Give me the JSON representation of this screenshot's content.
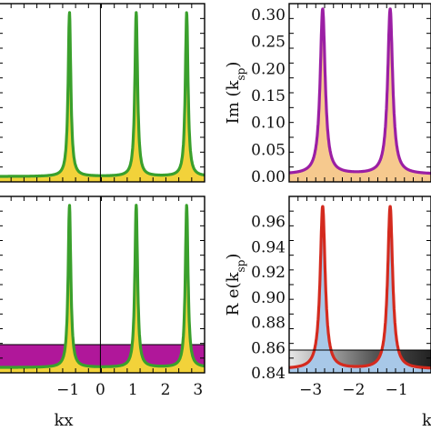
{
  "panels": {
    "top_left": {
      "xlim": [
        -3.14,
        3.2
      ],
      "ylim": [
        0,
        1
      ],
      "x_ticks": [],
      "y_ticks": [],
      "line_color": "#3aa02c",
      "fill_color": "#f2d23a"
    },
    "bottom_left": {
      "xlim": [
        -3.14,
        3.2
      ],
      "ylim": [
        0,
        1
      ],
      "x_ticks": [
        -1,
        0,
        1,
        2,
        3
      ],
      "x_tick_labels": [
        "−1",
        "0",
        "1",
        "2",
        "3"
      ],
      "xlabel": "kx",
      "line_color": "#3aa02c",
      "fill_color": "#f2d23a",
      "band_color": "#b0179a"
    },
    "top_right": {
      "xlim": [
        -3.5,
        -0.2
      ],
      "ylim": [
        -0.01,
        0.32
      ],
      "y_ticks": [
        0.0,
        0.05,
        0.1,
        0.15,
        0.2,
        0.25,
        0.3
      ],
      "y_tick_labels": [
        "0.00",
        "0.05",
        "0.10",
        "0.15",
        "0.20",
        "0.25",
        "0.30"
      ],
      "ylabel": "Im (k_sp)",
      "line_color": "#9b1fa4",
      "fill_color": "#f6c98e"
    },
    "bottom_right": {
      "xlim": [
        -3.5,
        -0.2
      ],
      "ylim": [
        0.84,
        0.98
      ],
      "y_ticks": [
        0.84,
        0.86,
        0.88,
        0.9,
        0.92,
        0.94,
        0.96
      ],
      "y_tick_labels": [
        "0.84",
        "0.86",
        "0.88",
        "0.90",
        "0.92",
        "0.94",
        "0.96"
      ],
      "x_ticks": [
        -3,
        -2,
        -1
      ],
      "x_tick_labels": [
        "−3",
        "−2",
        "−1"
      ],
      "ylabel": "R e(k_sp)",
      "line_color": "#d42a1e",
      "fill_color": "#a8c8e8"
    }
  },
  "chart_data": [
    {
      "type": "line",
      "panel": "top_left",
      "peaks_x": [
        -0.95,
        1.1,
        2.65
      ],
      "baseline": 0.03,
      "peak_value": 0.95,
      "xlim": [
        -3.14,
        3.2
      ],
      "ylim": [
        0,
        1
      ],
      "fill": "area-under-curve"
    },
    {
      "type": "line",
      "panel": "bottom_left",
      "xlabel": "kx",
      "peaks_x": [
        -0.95,
        1.1,
        2.65
      ],
      "baseline": 0.03,
      "peak_value": 0.95,
      "band_level": 0.16,
      "xlim": [
        -3.14,
        3.2
      ],
      "ylim": [
        0,
        1
      ],
      "fill": "area-under-curve"
    },
    {
      "type": "line",
      "panel": "top_right",
      "ylabel": "Im (k_sp)",
      "peaks_x": [
        -2.72,
        -1.15
      ],
      "baseline": 0.004,
      "peak_value": 0.31,
      "xlim": [
        -3.5,
        -0.2
      ],
      "ylim": [
        -0.01,
        0.32
      ],
      "fill": "area-under-curve"
    },
    {
      "type": "line",
      "panel": "bottom_right",
      "ylabel": "R e(k_sp)",
      "peaks_x": [
        -2.72,
        -1.15
      ],
      "baseline": 0.843,
      "peak_value": 0.972,
      "reference_line": 0.858,
      "xlim": [
        -3.5,
        -0.2
      ],
      "ylim": [
        0.84,
        0.98
      ],
      "fill": "area-under-curve"
    }
  ]
}
